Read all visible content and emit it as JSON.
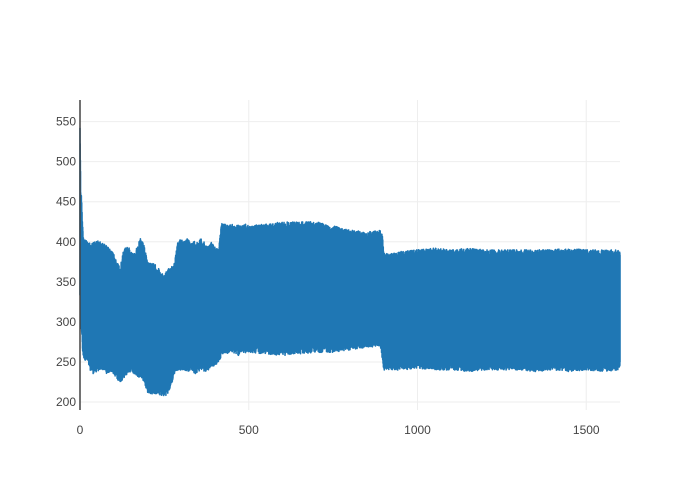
{
  "chart_data": {
    "type": "line",
    "title": "",
    "xlabel": "",
    "ylabel": "",
    "xlim": [
      0,
      1600
    ],
    "ylim": [
      190,
      577
    ],
    "x_ticks": [
      0,
      500,
      1000,
      1500
    ],
    "y_ticks": [
      200,
      250,
      300,
      350,
      400,
      450,
      500,
      550
    ],
    "x_tick_labels": [
      "0",
      "500",
      "1000",
      "1500"
    ],
    "y_tick_labels": [
      "200",
      "250",
      "300",
      "350",
      "400",
      "450",
      "500",
      "550"
    ],
    "grid": true,
    "legend": "none",
    "series": [
      {
        "color": "#1f77b4",
        "envelope": {
          "x": [
            0,
            2,
            4,
            6,
            8,
            10,
            20,
            30,
            40,
            50,
            60,
            70,
            80,
            90,
            100,
            110,
            120,
            130,
            140,
            150,
            160,
            170,
            180,
            190,
            200,
            210,
            220,
            230,
            240,
            250,
            260,
            270,
            280,
            290,
            300,
            310,
            320,
            330,
            340,
            350,
            360,
            370,
            380,
            390,
            400,
            410,
            420,
            430,
            440,
            450,
            460,
            470,
            480,
            490,
            500,
            550,
            600,
            650,
            700,
            750,
            800,
            850,
            890,
            895,
            900,
            910,
            920,
            950,
            1000,
            1050,
            1100,
            1150,
            1200,
            1250,
            1300,
            1350,
            1400,
            1450,
            1500,
            1550,
            1600
          ],
          "upper": [
            550,
            470,
            460,
            440,
            420,
            410,
            400,
            398,
            400,
            402,
            400,
            398,
            395,
            390,
            385,
            375,
            370,
            392,
            395,
            390,
            385,
            395,
            405,
            395,
            375,
            375,
            372,
            370,
            360,
            360,
            365,
            370,
            375,
            400,
            405,
            400,
            405,
            398,
            402,
            400,
            405,
            398,
            395,
            400,
            395,
            390,
            425,
            423,
            420,
            422,
            420,
            421,
            420,
            422,
            420,
            422,
            425,
            425,
            425,
            420,
            415,
            412,
            415,
            412,
            390,
            385,
            385,
            388,
            390,
            392,
            390,
            392,
            390,
            390,
            390,
            390,
            390,
            392,
            390,
            390,
            390
          ],
          "lower": [
            330,
            300,
            285,
            280,
            260,
            255,
            250,
            240,
            235,
            238,
            240,
            240,
            235,
            238,
            235,
            228,
            225,
            230,
            235,
            238,
            235,
            232,
            230,
            225,
            212,
            210,
            210,
            210,
            208,
            207,
            210,
            220,
            235,
            240,
            240,
            240,
            238,
            240,
            235,
            238,
            240,
            238,
            240,
            245,
            245,
            250,
            258,
            262,
            260,
            262,
            260,
            258,
            262,
            260,
            262,
            260,
            258,
            260,
            262,
            262,
            265,
            268,
            270,
            255,
            240,
            238,
            240,
            240,
            242,
            240,
            240,
            238,
            240,
            240,
            240,
            238,
            240,
            238,
            240,
            238,
            240
          ]
        }
      }
    ]
  }
}
